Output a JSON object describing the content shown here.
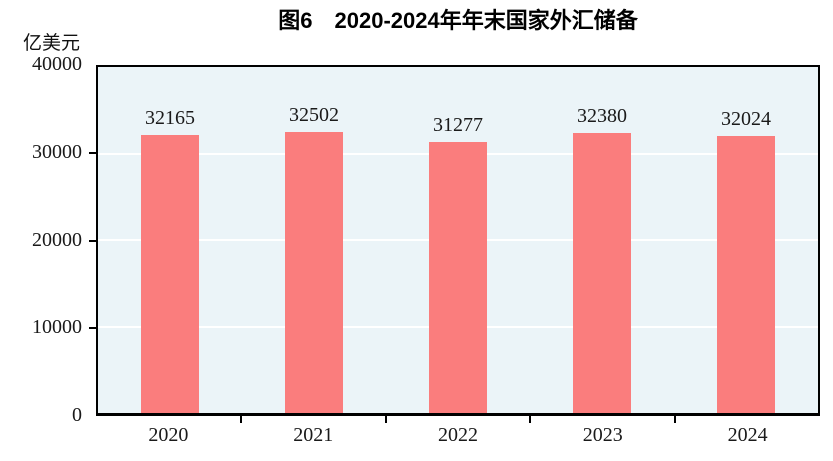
{
  "chart_data": {
    "type": "bar",
    "title": "图6　2020-2024年年末国家外汇储备",
    "unit_label": "亿美元",
    "categories": [
      "2020",
      "2021",
      "2022",
      "2023",
      "2024"
    ],
    "values": [
      32165,
      32502,
      31277,
      32380,
      32024
    ],
    "xlabel": "",
    "ylabel": "亿美元",
    "ylim": [
      0,
      40000
    ],
    "yticks": [
      0,
      10000,
      20000,
      30000,
      40000
    ],
    "gridlines_at": [
      10000,
      20000,
      30000
    ],
    "grid": true,
    "legend": "none",
    "data_labels": true,
    "colors": {
      "bar": "#FA7D7D",
      "plot_background": "#EBF4F8",
      "gridline": "#FFFFFF",
      "axis": "#000000",
      "text": "#1A1A1A"
    }
  }
}
